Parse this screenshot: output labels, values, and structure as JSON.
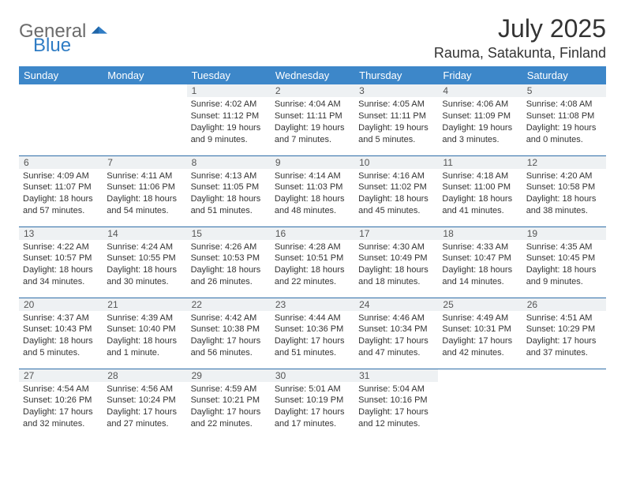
{
  "brand": {
    "word1": "General",
    "word2": "Blue"
  },
  "title": "July 2025",
  "location": "Rauma, Satakunta, Finland",
  "colors": {
    "header_bg": "#3d87c9",
    "header_text": "#ffffff",
    "daynum_bg": "#eef1f3",
    "row_border": "#2f6ea8",
    "brand_gray": "#6b6b6b",
    "brand_blue": "#2f7cc4"
  },
  "weekdays": [
    "Sunday",
    "Monday",
    "Tuesday",
    "Wednesday",
    "Thursday",
    "Friday",
    "Saturday"
  ],
  "weeks": [
    [
      null,
      null,
      {
        "n": "1",
        "sr": "4:02 AM",
        "ss": "11:12 PM",
        "dl": "19 hours and 9 minutes."
      },
      {
        "n": "2",
        "sr": "4:04 AM",
        "ss": "11:11 PM",
        "dl": "19 hours and 7 minutes."
      },
      {
        "n": "3",
        "sr": "4:05 AM",
        "ss": "11:11 PM",
        "dl": "19 hours and 5 minutes."
      },
      {
        "n": "4",
        "sr": "4:06 AM",
        "ss": "11:09 PM",
        "dl": "19 hours and 3 minutes."
      },
      {
        "n": "5",
        "sr": "4:08 AM",
        "ss": "11:08 PM",
        "dl": "19 hours and 0 minutes."
      }
    ],
    [
      {
        "n": "6",
        "sr": "4:09 AM",
        "ss": "11:07 PM",
        "dl": "18 hours and 57 minutes."
      },
      {
        "n": "7",
        "sr": "4:11 AM",
        "ss": "11:06 PM",
        "dl": "18 hours and 54 minutes."
      },
      {
        "n": "8",
        "sr": "4:13 AM",
        "ss": "11:05 PM",
        "dl": "18 hours and 51 minutes."
      },
      {
        "n": "9",
        "sr": "4:14 AM",
        "ss": "11:03 PM",
        "dl": "18 hours and 48 minutes."
      },
      {
        "n": "10",
        "sr": "4:16 AM",
        "ss": "11:02 PM",
        "dl": "18 hours and 45 minutes."
      },
      {
        "n": "11",
        "sr": "4:18 AM",
        "ss": "11:00 PM",
        "dl": "18 hours and 41 minutes."
      },
      {
        "n": "12",
        "sr": "4:20 AM",
        "ss": "10:58 PM",
        "dl": "18 hours and 38 minutes."
      }
    ],
    [
      {
        "n": "13",
        "sr": "4:22 AM",
        "ss": "10:57 PM",
        "dl": "18 hours and 34 minutes."
      },
      {
        "n": "14",
        "sr": "4:24 AM",
        "ss": "10:55 PM",
        "dl": "18 hours and 30 minutes."
      },
      {
        "n": "15",
        "sr": "4:26 AM",
        "ss": "10:53 PM",
        "dl": "18 hours and 26 minutes."
      },
      {
        "n": "16",
        "sr": "4:28 AM",
        "ss": "10:51 PM",
        "dl": "18 hours and 22 minutes."
      },
      {
        "n": "17",
        "sr": "4:30 AM",
        "ss": "10:49 PM",
        "dl": "18 hours and 18 minutes."
      },
      {
        "n": "18",
        "sr": "4:33 AM",
        "ss": "10:47 PM",
        "dl": "18 hours and 14 minutes."
      },
      {
        "n": "19",
        "sr": "4:35 AM",
        "ss": "10:45 PM",
        "dl": "18 hours and 9 minutes."
      }
    ],
    [
      {
        "n": "20",
        "sr": "4:37 AM",
        "ss": "10:43 PM",
        "dl": "18 hours and 5 minutes."
      },
      {
        "n": "21",
        "sr": "4:39 AM",
        "ss": "10:40 PM",
        "dl": "18 hours and 1 minute."
      },
      {
        "n": "22",
        "sr": "4:42 AM",
        "ss": "10:38 PM",
        "dl": "17 hours and 56 minutes."
      },
      {
        "n": "23",
        "sr": "4:44 AM",
        "ss": "10:36 PM",
        "dl": "17 hours and 51 minutes."
      },
      {
        "n": "24",
        "sr": "4:46 AM",
        "ss": "10:34 PM",
        "dl": "17 hours and 47 minutes."
      },
      {
        "n": "25",
        "sr": "4:49 AM",
        "ss": "10:31 PM",
        "dl": "17 hours and 42 minutes."
      },
      {
        "n": "26",
        "sr": "4:51 AM",
        "ss": "10:29 PM",
        "dl": "17 hours and 37 minutes."
      }
    ],
    [
      {
        "n": "27",
        "sr": "4:54 AM",
        "ss": "10:26 PM",
        "dl": "17 hours and 32 minutes."
      },
      {
        "n": "28",
        "sr": "4:56 AM",
        "ss": "10:24 PM",
        "dl": "17 hours and 27 minutes."
      },
      {
        "n": "29",
        "sr": "4:59 AM",
        "ss": "10:21 PM",
        "dl": "17 hours and 22 minutes."
      },
      {
        "n": "30",
        "sr": "5:01 AM",
        "ss": "10:19 PM",
        "dl": "17 hours and 17 minutes."
      },
      {
        "n": "31",
        "sr": "5:04 AM",
        "ss": "10:16 PM",
        "dl": "17 hours and 12 minutes."
      },
      null,
      null
    ]
  ],
  "labels": {
    "sunrise": "Sunrise:",
    "sunset": "Sunset:",
    "daylight": "Daylight:"
  }
}
